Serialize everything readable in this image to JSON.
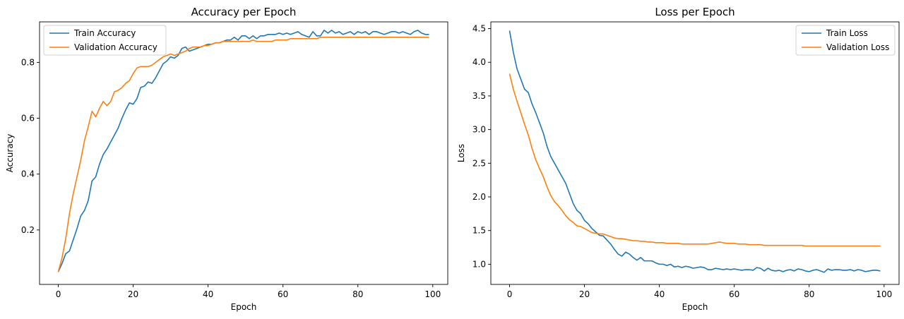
{
  "chart_data": [
    {
      "type": "line",
      "title": "Accuracy per Epoch",
      "xlabel": "Epoch",
      "ylabel": "Accuracy",
      "xlim": [
        -5,
        104
      ],
      "ylim": [
        0.005,
        0.945
      ],
      "xticks": [
        0,
        20,
        40,
        60,
        80,
        100
      ],
      "yticks": [
        0.2,
        0.4,
        0.6,
        0.8
      ],
      "xtick_labels": [
        "0",
        "20",
        "40",
        "60",
        "80",
        "100"
      ],
      "ytick_labels": [
        "0.2",
        "0.4",
        "0.6",
        "0.8"
      ],
      "grid": false,
      "legend_position": "top-left",
      "series": [
        {
          "name": "Train Accuracy",
          "color": "#1f77b4",
          "values": [
            0.05,
            0.08,
            0.115,
            0.125,
            0.165,
            0.205,
            0.25,
            0.27,
            0.305,
            0.375,
            0.39,
            0.435,
            0.47,
            0.49,
            0.515,
            0.54,
            0.565,
            0.6,
            0.63,
            0.655,
            0.65,
            0.67,
            0.71,
            0.715,
            0.73,
            0.725,
            0.745,
            0.77,
            0.795,
            0.805,
            0.82,
            0.815,
            0.825,
            0.85,
            0.855,
            0.84,
            0.845,
            0.85,
            0.855,
            0.86,
            0.865,
            0.865,
            0.87,
            0.87,
            0.875,
            0.88,
            0.88,
            0.89,
            0.88,
            0.895,
            0.895,
            0.885,
            0.895,
            0.885,
            0.895,
            0.895,
            0.9,
            0.9,
            0.9,
            0.905,
            0.9,
            0.905,
            0.9,
            0.905,
            0.91,
            0.9,
            0.895,
            0.89,
            0.91,
            0.895,
            0.895,
            0.915,
            0.905,
            0.915,
            0.905,
            0.91,
            0.9,
            0.905,
            0.91,
            0.9,
            0.91,
            0.905,
            0.91,
            0.9,
            0.91,
            0.91,
            0.905,
            0.9,
            0.905,
            0.91,
            0.91,
            0.905,
            0.91,
            0.905,
            0.9,
            0.91,
            0.915,
            0.905,
            0.9,
            0.9
          ]
        },
        {
          "name": "Validation Accuracy",
          "color": "#ff7f0e",
          "values": [
            0.05,
            0.1,
            0.17,
            0.26,
            0.33,
            0.39,
            0.45,
            0.52,
            0.57,
            0.625,
            0.605,
            0.635,
            0.66,
            0.645,
            0.66,
            0.695,
            0.7,
            0.71,
            0.725,
            0.735,
            0.76,
            0.78,
            0.785,
            0.785,
            0.785,
            0.79,
            0.8,
            0.81,
            0.82,
            0.825,
            0.83,
            0.825,
            0.83,
            0.835,
            0.84,
            0.85,
            0.855,
            0.855,
            0.855,
            0.86,
            0.86,
            0.865,
            0.87,
            0.87,
            0.875,
            0.875,
            0.875,
            0.875,
            0.875,
            0.875,
            0.875,
            0.875,
            0.88,
            0.875,
            0.875,
            0.875,
            0.875,
            0.875,
            0.88,
            0.88,
            0.88,
            0.88,
            0.885,
            0.885,
            0.885,
            0.885,
            0.885,
            0.885,
            0.885,
            0.885,
            0.89,
            0.89,
            0.89,
            0.89,
            0.89,
            0.89,
            0.89,
            0.89,
            0.89,
            0.89,
            0.89,
            0.89,
            0.89,
            0.89,
            0.89,
            0.89,
            0.89,
            0.89,
            0.89,
            0.89,
            0.89,
            0.89,
            0.89,
            0.89,
            0.89,
            0.89,
            0.89,
            0.89,
            0.89,
            0.89
          ]
        }
      ]
    },
    {
      "type": "line",
      "title": "Loss per Epoch",
      "xlabel": "Epoch",
      "ylabel": "Loss",
      "xlim": [
        -5,
        104
      ],
      "ylim": [
        0.7,
        4.6
      ],
      "xticks": [
        0,
        20,
        40,
        60,
        80,
        100
      ],
      "yticks": [
        1.0,
        1.5,
        2.0,
        2.5,
        3.0,
        3.5,
        4.0,
        4.5
      ],
      "xtick_labels": [
        "0",
        "20",
        "40",
        "60",
        "80",
        "100"
      ],
      "ytick_labels": [
        "1.0",
        "1.5",
        "2.0",
        "2.5",
        "3.0",
        "3.5",
        "4.0",
        "4.5"
      ],
      "grid": false,
      "legend_position": "top-right",
      "series": [
        {
          "name": "Train Loss",
          "color": "#1f77b4",
          "values": [
            4.47,
            4.15,
            3.9,
            3.75,
            3.6,
            3.55,
            3.38,
            3.25,
            3.1,
            2.95,
            2.75,
            2.6,
            2.5,
            2.4,
            2.3,
            2.2,
            2.05,
            1.9,
            1.8,
            1.75,
            1.65,
            1.6,
            1.53,
            1.48,
            1.43,
            1.42,
            1.36,
            1.3,
            1.22,
            1.15,
            1.12,
            1.18,
            1.15,
            1.1,
            1.06,
            1.1,
            1.05,
            1.05,
            1.05,
            1.02,
            1.0,
            1.0,
            0.98,
            1.0,
            0.96,
            0.97,
            0.95,
            0.97,
            0.96,
            0.94,
            0.95,
            0.96,
            0.95,
            0.92,
            0.92,
            0.94,
            0.93,
            0.92,
            0.93,
            0.92,
            0.93,
            0.92,
            0.91,
            0.92,
            0.92,
            0.91,
            0.95,
            0.94,
            0.9,
            0.94,
            0.91,
            0.9,
            0.91,
            0.89,
            0.91,
            0.92,
            0.9,
            0.93,
            0.92,
            0.9,
            0.89,
            0.91,
            0.92,
            0.9,
            0.88,
            0.93,
            0.91,
            0.92,
            0.92,
            0.91,
            0.91,
            0.92,
            0.9,
            0.92,
            0.91,
            0.89,
            0.9,
            0.91,
            0.91,
            0.9
          ]
        },
        {
          "name": "Validation Loss",
          "color": "#ff7f0e",
          "values": [
            3.83,
            3.6,
            3.42,
            3.25,
            3.08,
            2.92,
            2.72,
            2.55,
            2.42,
            2.3,
            2.15,
            2.02,
            1.93,
            1.87,
            1.8,
            1.72,
            1.66,
            1.62,
            1.57,
            1.56,
            1.53,
            1.5,
            1.47,
            1.46,
            1.45,
            1.45,
            1.43,
            1.41,
            1.39,
            1.38,
            1.38,
            1.37,
            1.36,
            1.35,
            1.35,
            1.34,
            1.34,
            1.33,
            1.33,
            1.32,
            1.32,
            1.32,
            1.31,
            1.31,
            1.31,
            1.31,
            1.3,
            1.3,
            1.3,
            1.3,
            1.3,
            1.3,
            1.3,
            1.3,
            1.31,
            1.32,
            1.33,
            1.32,
            1.31,
            1.31,
            1.31,
            1.3,
            1.3,
            1.3,
            1.29,
            1.29,
            1.29,
            1.29,
            1.28,
            1.28,
            1.28,
            1.28,
            1.28,
            1.28,
            1.28,
            1.28,
            1.28,
            1.28,
            1.28,
            1.27,
            1.27,
            1.27,
            1.27,
            1.27,
            1.27,
            1.27,
            1.27,
            1.27,
            1.27,
            1.27,
            1.27,
            1.27,
            1.27,
            1.27,
            1.27,
            1.27,
            1.27,
            1.27,
            1.27,
            1.27
          ]
        }
      ]
    }
  ]
}
